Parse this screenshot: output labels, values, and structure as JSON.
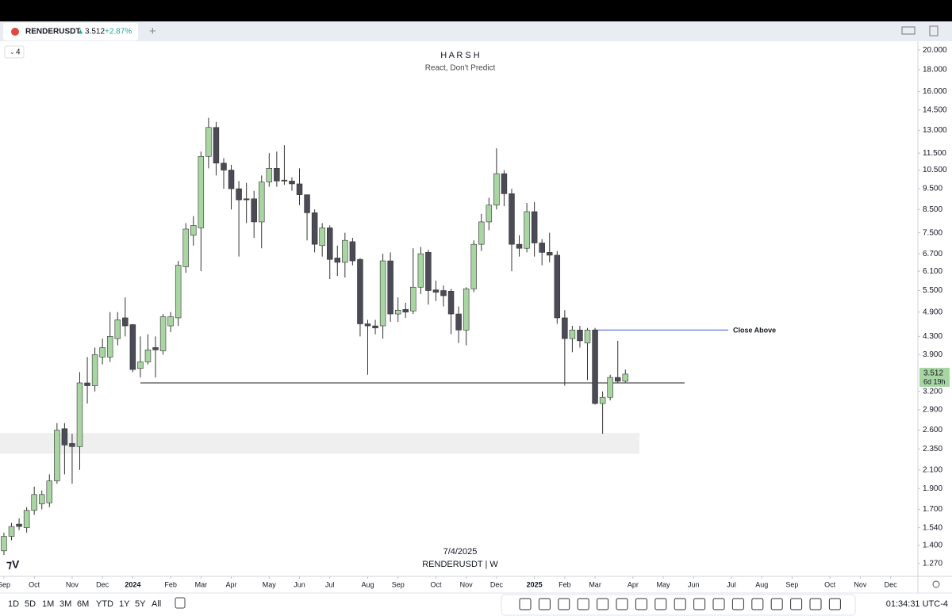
{
  "header": {
    "symbol": "RENDERUSDT",
    "price": "3.512",
    "change": "+2.87%",
    "layout_count": "4"
  },
  "toolbar": {
    "ranges": [
      "1D",
      "5D",
      "1M",
      "3M",
      "6M",
      "YTD",
      "1Y",
      "5Y",
      "All"
    ],
    "clock": "01:34:31 UTC-4"
  },
  "chart_data": {
    "type": "candlestick",
    "title": "H A R S H",
    "subtitle": "React, Don't Predict",
    "watermark_date": "7/4/2025",
    "watermark_symbol": "RENDERUSDT | W",
    "up_color": "#a8d5a2",
    "down_color": "#4b4b57",
    "log_scale": true,
    "open": [
      1.36,
      1.47,
      1.57,
      1.54,
      1.69,
      1.75,
      1.76,
      1.98,
      2.62,
      2.42,
      2.38,
      3.35,
      3.3,
      3.85,
      3.85,
      4.25,
      4.75,
      4.58,
      3.62,
      3.75,
      4.05,
      3.98,
      4.55,
      4.75,
      6.25,
      7.4,
      7.7,
      11.3,
      13.2,
      10.9,
      10.5,
      9.5,
      9.0,
      9.0,
      7.95,
      9.85,
      10.6,
      9.95,
      9.9,
      9.75,
      9.2,
      8.35,
      7.0,
      7.7,
      6.55,
      6.4,
      7.15,
      6.5,
      4.6,
      4.55,
      4.55,
      6.45,
      4.85,
      4.97,
      4.93,
      5.6,
      6.75,
      5.52,
      5.5,
      5.48,
      4.85,
      4.45,
      5.55,
      7.05,
      7.95,
      8.7,
      10.3,
      9.25,
      7.05,
      6.9,
      8.4,
      7.1,
      6.75,
      6.65,
      4.75,
      4.25,
      4.45,
      4.15,
      4.45,
      3.0,
      3.1,
      3.45,
      3.38
    ],
    "high": [
      1.5,
      1.58,
      1.62,
      1.72,
      1.92,
      1.88,
      2.05,
      2.7,
      2.7,
      2.55,
      3.55,
      3.85,
      4.05,
      4.25,
      4.9,
      4.9,
      5.3,
      4.6,
      4.3,
      4.35,
      4.3,
      4.85,
      4.9,
      6.45,
      7.9,
      8.2,
      11.6,
      13.9,
      13.6,
      11.2,
      10.8,
      9.9,
      9.8,
      9.4,
      10.2,
      11.5,
      11.6,
      12.0,
      10.1,
      10.6,
      9.2,
      8.5,
      7.9,
      7.8,
      7.0,
      7.5,
      7.3,
      6.55,
      4.7,
      4.7,
      6.7,
      6.75,
      5.3,
      5.15,
      6.9,
      6.95,
      6.85,
      5.8,
      5.65,
      5.55,
      5.05,
      5.6,
      7.2,
      8.3,
      9.05,
      11.8,
      10.5,
      9.5,
      7.4,
      8.8,
      8.85,
      7.25,
      7.5,
      6.8,
      4.95,
      4.55,
      4.55,
      4.5,
      4.5,
      3.2,
      3.5,
      4.2,
      3.6
    ],
    "low": [
      1.33,
      1.44,
      1.52,
      1.5,
      1.65,
      1.7,
      1.72,
      1.95,
      2.05,
      1.95,
      2.1,
      3.0,
      3.2,
      3.7,
      3.75,
      4.1,
      4.3,
      3.55,
      3.45,
      3.7,
      3.45,
      3.9,
      4.4,
      4.55,
      6.05,
      7.0,
      6.1,
      10.6,
      10.2,
      9.5,
      8.5,
      6.6,
      7.9,
      7.3,
      6.9,
      9.6,
      9.6,
      9.7,
      9.4,
      8.7,
      7.2,
      6.75,
      6.6,
      5.85,
      5.95,
      5.9,
      6.3,
      4.3,
      3.5,
      4.35,
      4.25,
      4.65,
      4.65,
      4.75,
      4.85,
      5.4,
      5.1,
      5.2,
      5.05,
      4.35,
      4.15,
      4.1,
      5.45,
      6.8,
      7.6,
      8.5,
      8.65,
      6.1,
      6.6,
      6.75,
      6.6,
      6.3,
      6.4,
      4.6,
      3.3,
      3.95,
      4.05,
      3.4,
      2.98,
      2.55,
      3.05,
      3.35,
      3.36
    ],
    "close": [
      1.47,
      1.55,
      1.55,
      1.69,
      1.84,
      1.84,
      1.98,
      2.6,
      2.4,
      2.38,
      3.35,
      3.3,
      3.9,
      4.05,
      4.3,
      4.7,
      4.55,
      3.6,
      3.75,
      4.0,
      4.0,
      4.78,
      4.78,
      6.3,
      7.65,
      7.8,
      11.3,
      13.2,
      10.9,
      10.5,
      9.5,
      8.95,
      8.95,
      7.95,
      9.85,
      10.6,
      9.9,
      9.9,
      9.75,
      9.2,
      8.35,
      7.05,
      7.7,
      6.5,
      6.4,
      7.2,
      6.45,
      4.6,
      4.55,
      4.5,
      6.45,
      4.85,
      4.95,
      4.9,
      5.6,
      6.7,
      5.5,
      5.45,
      5.35,
      4.85,
      4.45,
      5.55,
      7.05,
      7.95,
      8.7,
      10.3,
      9.25,
      7.05,
      6.9,
      8.4,
      7.1,
      6.75,
      6.65,
      4.75,
      4.25,
      4.45,
      4.2,
      4.45,
      3.0,
      3.1,
      3.45,
      3.38,
      3.512
    ],
    "last_price_label": "3.512",
    "countdown": "6d 19h",
    "levels": [
      {
        "value": 3.35,
        "color": "#222222"
      },
      {
        "value": 4.45,
        "color": "#3b5bdb",
        "label": "Close Above"
      }
    ],
    "zones": [
      {
        "from": 2.29,
        "to": 2.56,
        "color": "#efefef"
      }
    ],
    "ylim": [
      1.186,
      20.97
    ],
    "yticks": [
      {
        "value": 20,
        "label": "20.000"
      },
      {
        "value": 18,
        "label": "18.000"
      },
      {
        "value": 16,
        "label": "16.000"
      },
      {
        "value": 14.5,
        "label": "14.500"
      },
      {
        "value": 13,
        "label": "13.000"
      },
      {
        "value": 11.5,
        "label": "11.500"
      },
      {
        "value": 10.5,
        "label": "10.500"
      },
      {
        "value": 9.5,
        "label": "9.500"
      },
      {
        "value": 8.5,
        "label": "8.500"
      },
      {
        "value": 7.5,
        "label": "7.500"
      },
      {
        "value": 6.7,
        "label": "6.700"
      },
      {
        "value": 6.1,
        "label": "6.100"
      },
      {
        "value": 5.5,
        "label": "5.500"
      },
      {
        "value": 4.9,
        "label": "4.900"
      },
      {
        "value": 4.3,
        "label": "4.300"
      },
      {
        "value": 3.9,
        "label": "3.900"
      },
      {
        "value": 3.2,
        "label": "3.200"
      },
      {
        "value": 2.9,
        "label": "2.900"
      },
      {
        "value": 2.6,
        "label": "2.600"
      },
      {
        "value": 2.35,
        "label": "2.350"
      },
      {
        "value": 2.1,
        "label": "2.100"
      },
      {
        "value": 1.9,
        "label": "1.900"
      },
      {
        "value": 1.7,
        "label": "1.700"
      },
      {
        "value": 1.54,
        "label": "1.540"
      },
      {
        "value": 1.4,
        "label": "1.400"
      },
      {
        "value": 1.27,
        "label": "1.270"
      }
    ],
    "xlim": [
      -0.52,
      120.6
    ],
    "xticks": [
      {
        "value": 0,
        "label": "Sep"
      },
      {
        "value": 4,
        "label": "Oct"
      },
      {
        "value": 9,
        "label": "Nov"
      },
      {
        "value": 13,
        "label": "Dec"
      },
      {
        "value": 17,
        "label": "2024"
      },
      {
        "value": 22,
        "label": "Feb"
      },
      {
        "value": 26,
        "label": "Mar"
      },
      {
        "value": 30,
        "label": "Apr"
      },
      {
        "value": 35,
        "label": "May"
      },
      {
        "value": 39,
        "label": "Jun"
      },
      {
        "value": 43,
        "label": "Jul"
      },
      {
        "value": 48,
        "label": "Aug"
      },
      {
        "value": 52,
        "label": "Sep"
      },
      {
        "value": 57,
        "label": "Oct"
      },
      {
        "value": 61,
        "label": "Nov"
      },
      {
        "value": 65,
        "label": "Dec"
      },
      {
        "value": 70,
        "label": "2025"
      },
      {
        "value": 74,
        "label": "Feb"
      },
      {
        "value": 78,
        "label": "Mar"
      },
      {
        "value": 83,
        "label": "Apr"
      },
      {
        "value": 87,
        "label": "May"
      },
      {
        "value": 91,
        "label": "Jun"
      },
      {
        "value": 96,
        "label": "Jul"
      },
      {
        "value": 100,
        "label": "Aug"
      },
      {
        "value": 104,
        "label": "Sep"
      },
      {
        "value": 109,
        "label": "Oct"
      },
      {
        "value": 113,
        "label": "Nov"
      },
      {
        "value": 117,
        "label": "Dec"
      }
    ]
  }
}
